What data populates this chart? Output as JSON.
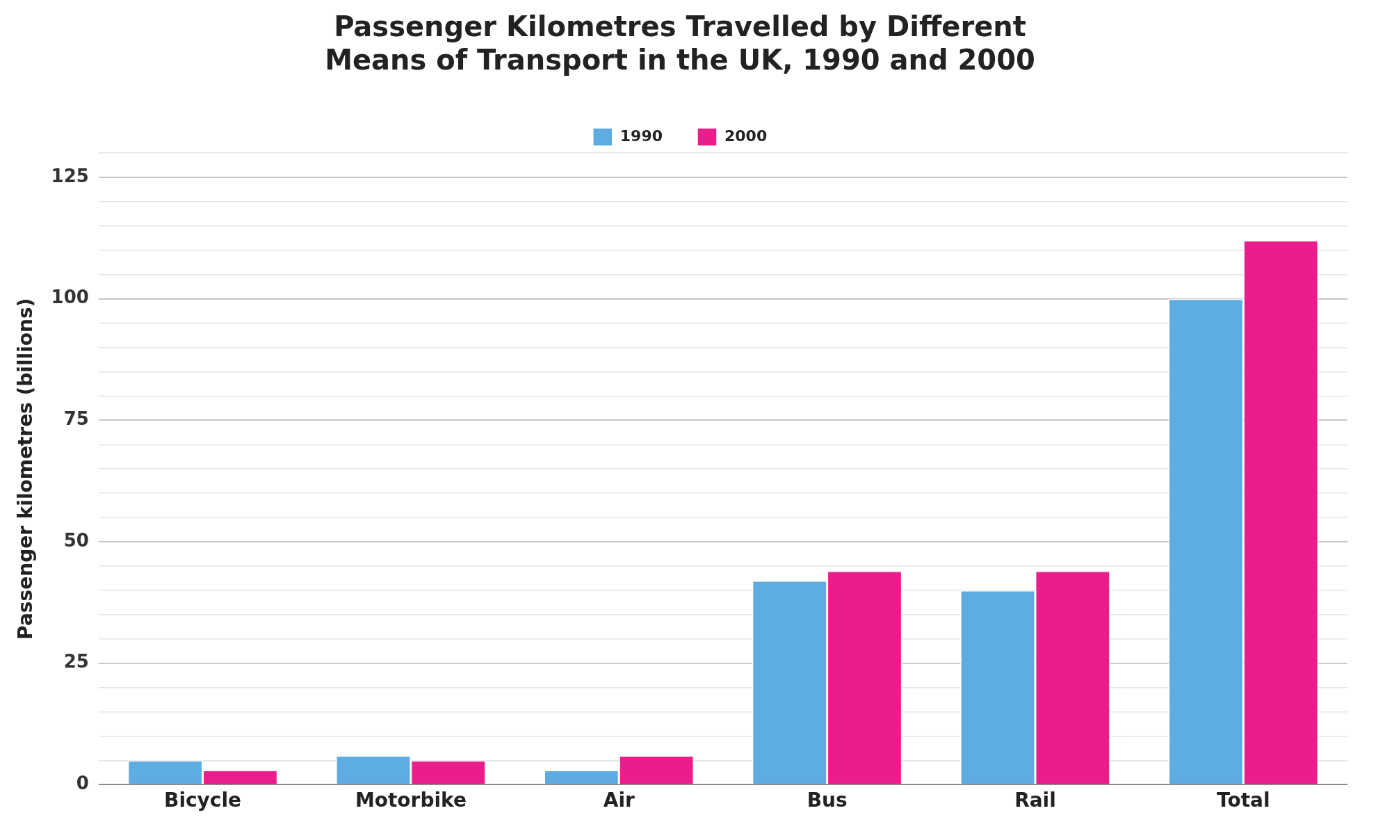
{
  "chart_data": {
    "type": "bar",
    "title": "Passenger Kilometres Travelled by Different\nMeans of Transport in the UK, 1990 and 2000",
    "ylabel": "Passenger kilometres (billions)",
    "categories": [
      "Bicycle",
      "Motorbike",
      "Air",
      "Bus",
      "Rail",
      "Total"
    ],
    "series": [
      {
        "name": "1990",
        "color": "#5dade2",
        "values": [
          5,
          6,
          3,
          42,
          40,
          100
        ]
      },
      {
        "name": "2000",
        "color": "#e91e8c",
        "values": [
          3,
          5,
          6,
          44,
          44,
          112
        ]
      }
    ],
    "ylim": [
      0,
      130
    ],
    "yticks": [
      0,
      {
        "value": 5,
        "label": null
      },
      {
        "value": 10,
        "label": null
      },
      {
        "value": 15,
        "label": null
      },
      {
        "value": 20,
        "label": null
      },
      25,
      {
        "value": 30,
        "label": null
      },
      {
        "value": 35,
        "label": null
      },
      {
        "value": 40,
        "label": null
      },
      {
        "value": 45,
        "label": null
      },
      50,
      {
        "value": 55,
        "label": null
      },
      {
        "value": 60,
        "label": null
      },
      {
        "value": 65,
        "label": null
      },
      {
        "value": 70,
        "label": null
      },
      75,
      {
        "value": 80,
        "label": null
      },
      {
        "value": 85,
        "label": null
      },
      {
        "value": 90,
        "label": null
      },
      {
        "value": 95,
        "label": null
      },
      100,
      {
        "value": 105,
        "label": null
      },
      {
        "value": 110,
        "label": null
      },
      {
        "value": 115,
        "label": null
      },
      {
        "value": 120,
        "label": null
      },
      125,
      {
        "value": 130,
        "label": null
      }
    ],
    "grid": "y",
    "legend": "top"
  }
}
